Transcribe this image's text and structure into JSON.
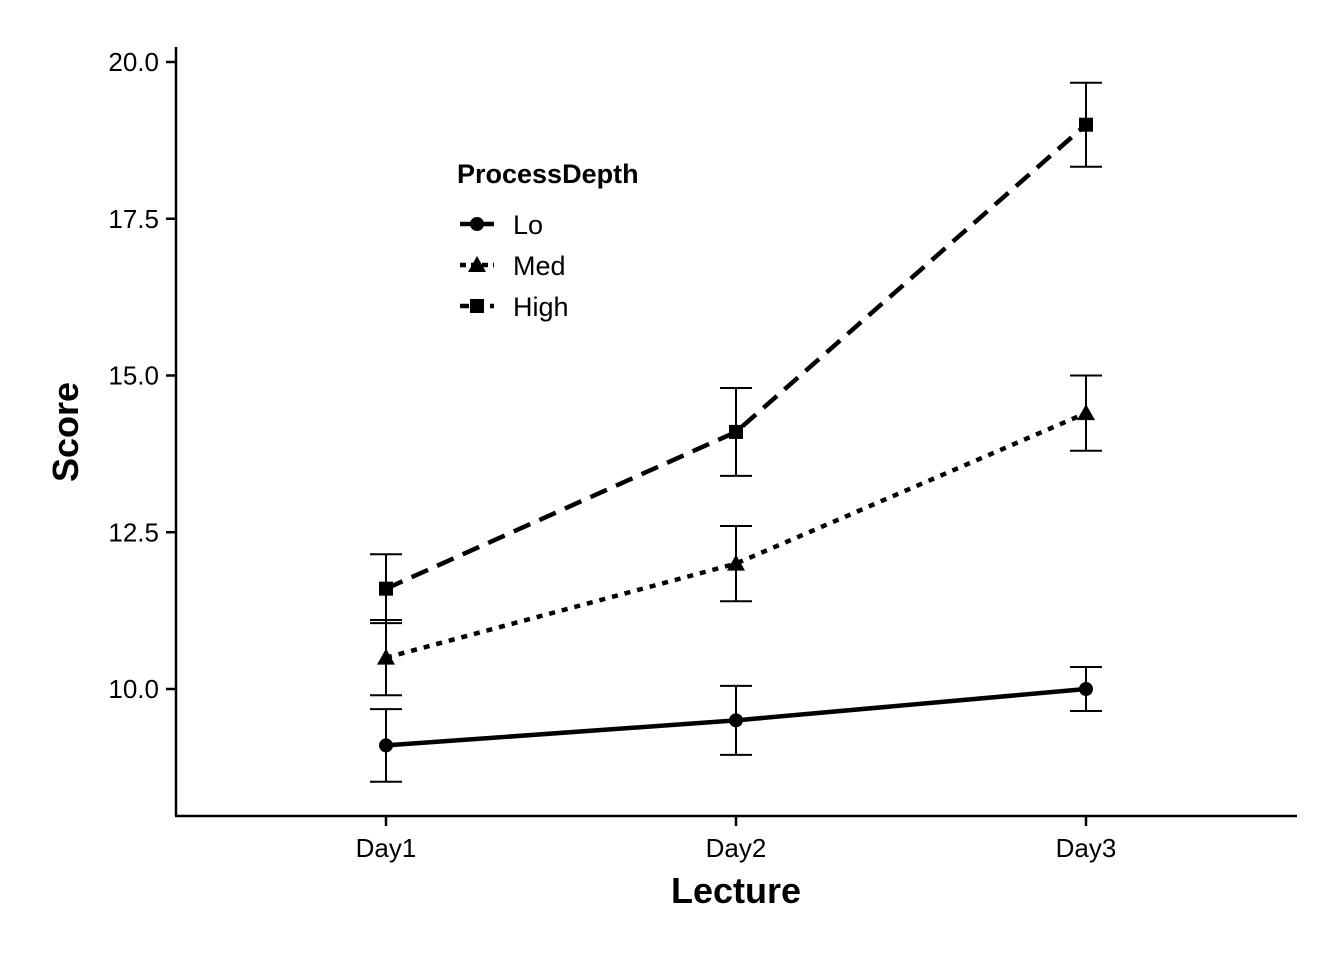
{
  "chart_data": {
    "type": "line",
    "title": "",
    "xlabel": "Lecture",
    "ylabel": "Score",
    "categories": [
      "Day1",
      "Day2",
      "Day3"
    ],
    "ylim": [
      8.0,
      20.25
    ],
    "yticks": [
      10.0,
      12.5,
      15.0,
      17.5,
      20.0
    ],
    "ytick_labels": [
      "10.0",
      "12.5",
      "15.0",
      "17.5",
      "20.0"
    ],
    "grid": false,
    "legend": {
      "title": "ProcessDepth",
      "placement": "top-left"
    },
    "series": [
      {
        "name": "Lo",
        "marker": "circle",
        "linestyle": "solid",
        "values": [
          9.1,
          9.5,
          10.0
        ],
        "err_low": [
          8.52,
          8.95,
          9.65
        ],
        "err_high": [
          9.68,
          10.05,
          10.35
        ]
      },
      {
        "name": "Med",
        "marker": "triangle",
        "linestyle": "dotted",
        "values": [
          10.5,
          12.0,
          14.4
        ],
        "err_low": [
          9.9,
          11.4,
          13.8
        ],
        "err_high": [
          11.1,
          12.6,
          15.0
        ]
      },
      {
        "name": "High",
        "marker": "square",
        "linestyle": "dashed",
        "values": [
          11.6,
          14.1,
          19.0
        ],
        "err_low": [
          11.05,
          13.4,
          18.33
        ],
        "err_high": [
          12.15,
          14.8,
          19.67
        ]
      }
    ]
  }
}
